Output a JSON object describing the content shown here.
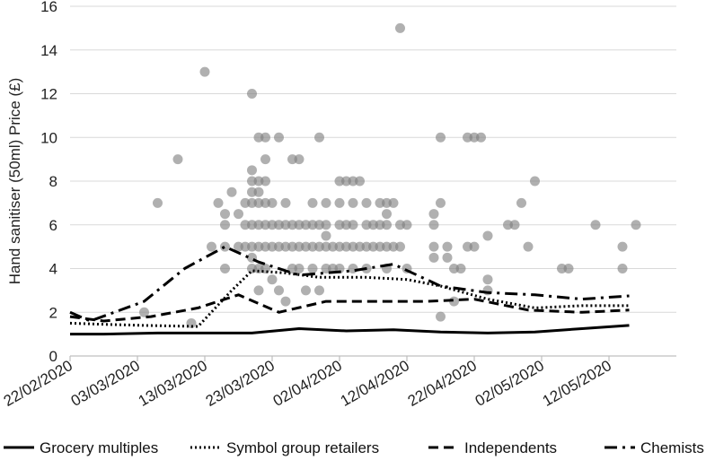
{
  "chart_data": {
    "type": "scatter",
    "ylabel": "Hand sanitiser (50ml) Price (£)",
    "xlabel": "",
    "ylim": [
      0,
      16
    ],
    "yticks": [
      0,
      2,
      4,
      6,
      8,
      10,
      12,
      14,
      16
    ],
    "xticks": [
      "22/02/2020",
      "03/03/2020",
      "13/03/2020",
      "23/03/2020",
      "02/04/2020",
      "12/04/2020",
      "22/04/2020",
      "02/05/2020",
      "12/05/2020"
    ],
    "x_start": "22/02/2020",
    "x_end": "22/05/2020",
    "grid": "horizontal",
    "legend_position": "bottom",
    "colors": {
      "dots": "#7f7f7f",
      "lines": "#000000"
    },
    "scatter_points": [
      [
        "11/03/2020",
        1.5
      ],
      [
        "04/03/2020",
        2.0
      ],
      [
        "06/03/2020",
        7.0
      ],
      [
        "09/03/2020",
        9.0
      ],
      [
        "13/03/2020",
        13.0
      ],
      [
        "14/03/2020",
        5.0
      ],
      [
        "15/03/2020",
        7.0
      ],
      [
        "16/03/2020",
        6.5
      ],
      [
        "16/03/2020",
        6.0
      ],
      [
        "16/03/2020",
        5.0
      ],
      [
        "16/03/2020",
        4.0
      ],
      [
        "17/03/2020",
        7.5
      ],
      [
        "18/03/2020",
        6.5
      ],
      [
        "18/03/2020",
        5.0
      ],
      [
        "19/03/2020",
        7.0
      ],
      [
        "19/03/2020",
        6.0
      ],
      [
        "19/03/2020",
        5.0
      ],
      [
        "20/03/2020",
        8.5
      ],
      [
        "20/03/2020",
        8.0
      ],
      [
        "20/03/2020",
        7.5
      ],
      [
        "20/03/2020",
        7.0
      ],
      [
        "20/03/2020",
        6.0
      ],
      [
        "20/03/2020",
        5.0
      ],
      [
        "20/03/2020",
        4.5
      ],
      [
        "20/03/2020",
        4.0
      ],
      [
        "20/03/2020",
        12.0
      ],
      [
        "21/03/2020",
        10.0
      ],
      [
        "21/03/2020",
        8.0
      ],
      [
        "21/03/2020",
        7.5
      ],
      [
        "21/03/2020",
        7.0
      ],
      [
        "21/03/2020",
        6.0
      ],
      [
        "21/03/2020",
        5.0
      ],
      [
        "21/03/2020",
        4.0
      ],
      [
        "21/03/2020",
        3.0
      ],
      [
        "22/03/2020",
        10.0
      ],
      [
        "22/03/2020",
        9.0
      ],
      [
        "22/03/2020",
        8.0
      ],
      [
        "22/03/2020",
        7.0
      ],
      [
        "22/03/2020",
        6.0
      ],
      [
        "22/03/2020",
        5.0
      ],
      [
        "22/03/2020",
        4.0
      ],
      [
        "23/03/2020",
        7.0
      ],
      [
        "23/03/2020",
        6.0
      ],
      [
        "23/03/2020",
        5.0
      ],
      [
        "23/03/2020",
        3.5
      ],
      [
        "24/03/2020",
        10.0
      ],
      [
        "24/03/2020",
        6.0
      ],
      [
        "24/03/2020",
        5.0
      ],
      [
        "24/03/2020",
        3.0
      ],
      [
        "25/03/2020",
        7.0
      ],
      [
        "25/03/2020",
        6.0
      ],
      [
        "25/03/2020",
        5.0
      ],
      [
        "25/03/2020",
        2.5
      ],
      [
        "26/03/2020",
        9.0
      ],
      [
        "26/03/2020",
        6.0
      ],
      [
        "26/03/2020",
        5.0
      ],
      [
        "26/03/2020",
        4.0
      ],
      [
        "27/03/2020",
        9.0
      ],
      [
        "27/03/2020",
        6.0
      ],
      [
        "27/03/2020",
        5.0
      ],
      [
        "27/03/2020",
        4.0
      ],
      [
        "28/03/2020",
        6.0
      ],
      [
        "28/03/2020",
        5.0
      ],
      [
        "28/03/2020",
        3.0
      ],
      [
        "29/03/2020",
        7.0
      ],
      [
        "29/03/2020",
        6.0
      ],
      [
        "29/03/2020",
        5.0
      ],
      [
        "29/03/2020",
        4.0
      ],
      [
        "30/03/2020",
        10.0
      ],
      [
        "30/03/2020",
        6.0
      ],
      [
        "30/03/2020",
        5.0
      ],
      [
        "30/03/2020",
        3.0
      ],
      [
        "31/03/2020",
        7.0
      ],
      [
        "31/03/2020",
        6.0
      ],
      [
        "31/03/2020",
        5.5
      ],
      [
        "31/03/2020",
        5.0
      ],
      [
        "31/03/2020",
        4.0
      ],
      [
        "01/04/2020",
        5.0
      ],
      [
        "01/04/2020",
        4.0
      ],
      [
        "02/04/2020",
        8.0
      ],
      [
        "02/04/2020",
        7.0
      ],
      [
        "02/04/2020",
        6.0
      ],
      [
        "02/04/2020",
        5.0
      ],
      [
        "02/04/2020",
        4.0
      ],
      [
        "03/04/2020",
        8.0
      ],
      [
        "03/04/2020",
        6.0
      ],
      [
        "03/04/2020",
        5.0
      ],
      [
        "04/04/2020",
        8.0
      ],
      [
        "04/04/2020",
        7.0
      ],
      [
        "04/04/2020",
        6.0
      ],
      [
        "04/04/2020",
        5.0
      ],
      [
        "04/04/2020",
        4.0
      ],
      [
        "05/04/2020",
        8.0
      ],
      [
        "05/04/2020",
        5.0
      ],
      [
        "06/04/2020",
        7.0
      ],
      [
        "06/04/2020",
        6.0
      ],
      [
        "06/04/2020",
        5.0
      ],
      [
        "06/04/2020",
        4.0
      ],
      [
        "07/04/2020",
        6.0
      ],
      [
        "07/04/2020",
        5.0
      ],
      [
        "08/04/2020",
        7.0
      ],
      [
        "08/04/2020",
        6.0
      ],
      [
        "08/04/2020",
        5.0
      ],
      [
        "09/04/2020",
        7.0
      ],
      [
        "09/04/2020",
        6.5
      ],
      [
        "09/04/2020",
        6.0
      ],
      [
        "09/04/2020",
        5.0
      ],
      [
        "09/04/2020",
        4.0
      ],
      [
        "10/04/2020",
        7.0
      ],
      [
        "10/04/2020",
        5.0
      ],
      [
        "11/04/2020",
        15.0
      ],
      [
        "11/04/2020",
        6.0
      ],
      [
        "11/04/2020",
        5.0
      ],
      [
        "12/04/2020",
        4.0
      ],
      [
        "12/04/2020",
        6.0
      ],
      [
        "16/04/2020",
        6.5
      ],
      [
        "16/04/2020",
        6.0
      ],
      [
        "16/04/2020",
        5.0
      ],
      [
        "16/04/2020",
        4.5
      ],
      [
        "17/04/2020",
        10.0
      ],
      [
        "17/04/2020",
        7.0
      ],
      [
        "17/04/2020",
        1.8
      ],
      [
        "18/04/2020",
        5.0
      ],
      [
        "18/04/2020",
        4.5
      ],
      [
        "19/04/2020",
        4.0
      ],
      [
        "19/04/2020",
        2.5
      ],
      [
        "20/04/2020",
        4.0
      ],
      [
        "21/04/2020",
        10.0
      ],
      [
        "21/04/2020",
        5.0
      ],
      [
        "22/04/2020",
        5.0
      ],
      [
        "22/04/2020",
        10.0
      ],
      [
        "23/04/2020",
        10.0
      ],
      [
        "24/04/2020",
        5.5
      ],
      [
        "24/04/2020",
        3.5
      ],
      [
        "24/04/2020",
        3.0
      ],
      [
        "27/04/2020",
        6.0
      ],
      [
        "28/04/2020",
        6.0
      ],
      [
        "29/04/2020",
        7.0
      ],
      [
        "30/04/2020",
        5.0
      ],
      [
        "01/05/2020",
        8.0
      ],
      [
        "05/05/2020",
        4.0
      ],
      [
        "06/05/2020",
        4.0
      ],
      [
        "10/05/2020",
        6.0
      ],
      [
        "14/05/2020",
        5.0
      ],
      [
        "14/05/2020",
        4.0
      ],
      [
        "16/05/2020",
        6.0
      ]
    ],
    "series": [
      {
        "name": "Grocery multiples",
        "dash": "solid",
        "points": [
          [
            "22/02/2020",
            1.0
          ],
          [
            "27/02/2020",
            1.0
          ],
          [
            "06/03/2020",
            1.05
          ],
          [
            "13/03/2020",
            1.05
          ],
          [
            "20/03/2020",
            1.05
          ],
          [
            "27/03/2020",
            1.25
          ],
          [
            "03/04/2020",
            1.15
          ],
          [
            "10/04/2020",
            1.2
          ],
          [
            "17/04/2020",
            1.1
          ],
          [
            "24/04/2020",
            1.05
          ],
          [
            "01/05/2020",
            1.1
          ],
          [
            "08/05/2020",
            1.25
          ],
          [
            "15/05/2020",
            1.4
          ]
        ]
      },
      {
        "name": "Symbol group retailers",
        "dash": "dot",
        "points": [
          [
            "22/02/2020",
            1.5
          ],
          [
            "27/02/2020",
            1.45
          ],
          [
            "04/03/2020",
            1.4
          ],
          [
            "12/03/2020",
            1.35
          ],
          [
            "17/03/2020",
            3.0
          ],
          [
            "20/03/2020",
            3.9
          ],
          [
            "25/03/2020",
            3.8
          ],
          [
            "30/03/2020",
            3.6
          ],
          [
            "06/04/2020",
            3.6
          ],
          [
            "12/04/2020",
            3.5
          ],
          [
            "17/04/2020",
            3.2
          ],
          [
            "24/04/2020",
            2.6
          ],
          [
            "01/05/2020",
            2.2
          ],
          [
            "08/05/2020",
            2.3
          ],
          [
            "15/05/2020",
            2.3
          ]
        ]
      },
      {
        "name": "Independents",
        "dash": "dash",
        "points": [
          [
            "22/02/2020",
            1.8
          ],
          [
            "27/02/2020",
            1.6
          ],
          [
            "05/03/2020",
            1.8
          ],
          [
            "12/03/2020",
            2.2
          ],
          [
            "18/03/2020",
            2.8
          ],
          [
            "24/03/2020",
            2.0
          ],
          [
            "31/03/2020",
            2.5
          ],
          [
            "07/04/2020",
            2.5
          ],
          [
            "15/04/2020",
            2.5
          ],
          [
            "22/04/2020",
            2.6
          ],
          [
            "30/04/2020",
            2.1
          ],
          [
            "08/05/2020",
            2.0
          ],
          [
            "15/05/2020",
            2.1
          ]
        ]
      },
      {
        "name": "Chemists",
        "dash": "dashdot",
        "points": [
          [
            "22/02/2020",
            2.0
          ],
          [
            "25/02/2020",
            1.6
          ],
          [
            "04/03/2020",
            2.5
          ],
          [
            "10/03/2020",
            4.0
          ],
          [
            "16/03/2020",
            5.0
          ],
          [
            "21/03/2020",
            4.3
          ],
          [
            "27/03/2020",
            3.7
          ],
          [
            "04/04/2020",
            3.9
          ],
          [
            "10/04/2020",
            4.2
          ],
          [
            "17/04/2020",
            3.2
          ],
          [
            "24/04/2020",
            2.9
          ],
          [
            "01/05/2020",
            2.8
          ],
          [
            "08/05/2020",
            2.6
          ],
          [
            "15/05/2020",
            2.75
          ]
        ]
      }
    ]
  }
}
